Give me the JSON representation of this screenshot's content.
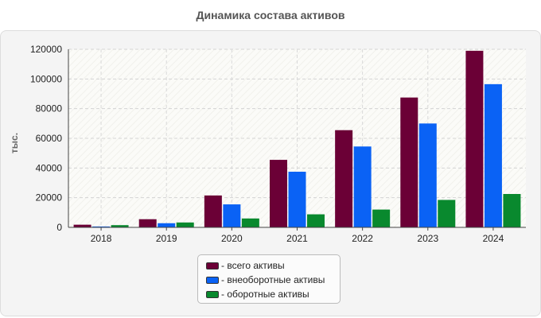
{
  "chart_data": {
    "type": "bar",
    "title": "Динамика состава активов",
    "ylabel": "тыс.",
    "xlabel": "",
    "categories": [
      "2018",
      "2019",
      "2020",
      "2021",
      "2022",
      "2023",
      "2024"
    ],
    "ylim": [
      0,
      120000
    ],
    "yticks": [
      0,
      20000,
      40000,
      60000,
      80000,
      100000,
      120000
    ],
    "grid": true,
    "legend_position": "bottom",
    "series": [
      {
        "name": "всего активы",
        "legend_label": "- всего активы",
        "color": "#6b0036",
        "values": [
          1800,
          5500,
          21500,
          45500,
          65500,
          87500,
          119000
        ]
      },
      {
        "name": "внеоборотные активы",
        "legend_label": "- внеоборотные активы",
        "color": "#0a62f5",
        "values": [
          600,
          2800,
          15500,
          37500,
          54500,
          70000,
          96500
        ]
      },
      {
        "name": "оборотные активы",
        "legend_label": "- оборотные активы",
        "color": "#09892e",
        "values": [
          1500,
          3300,
          6000,
          8800,
          12000,
          18500,
          22500
        ]
      }
    ]
  }
}
